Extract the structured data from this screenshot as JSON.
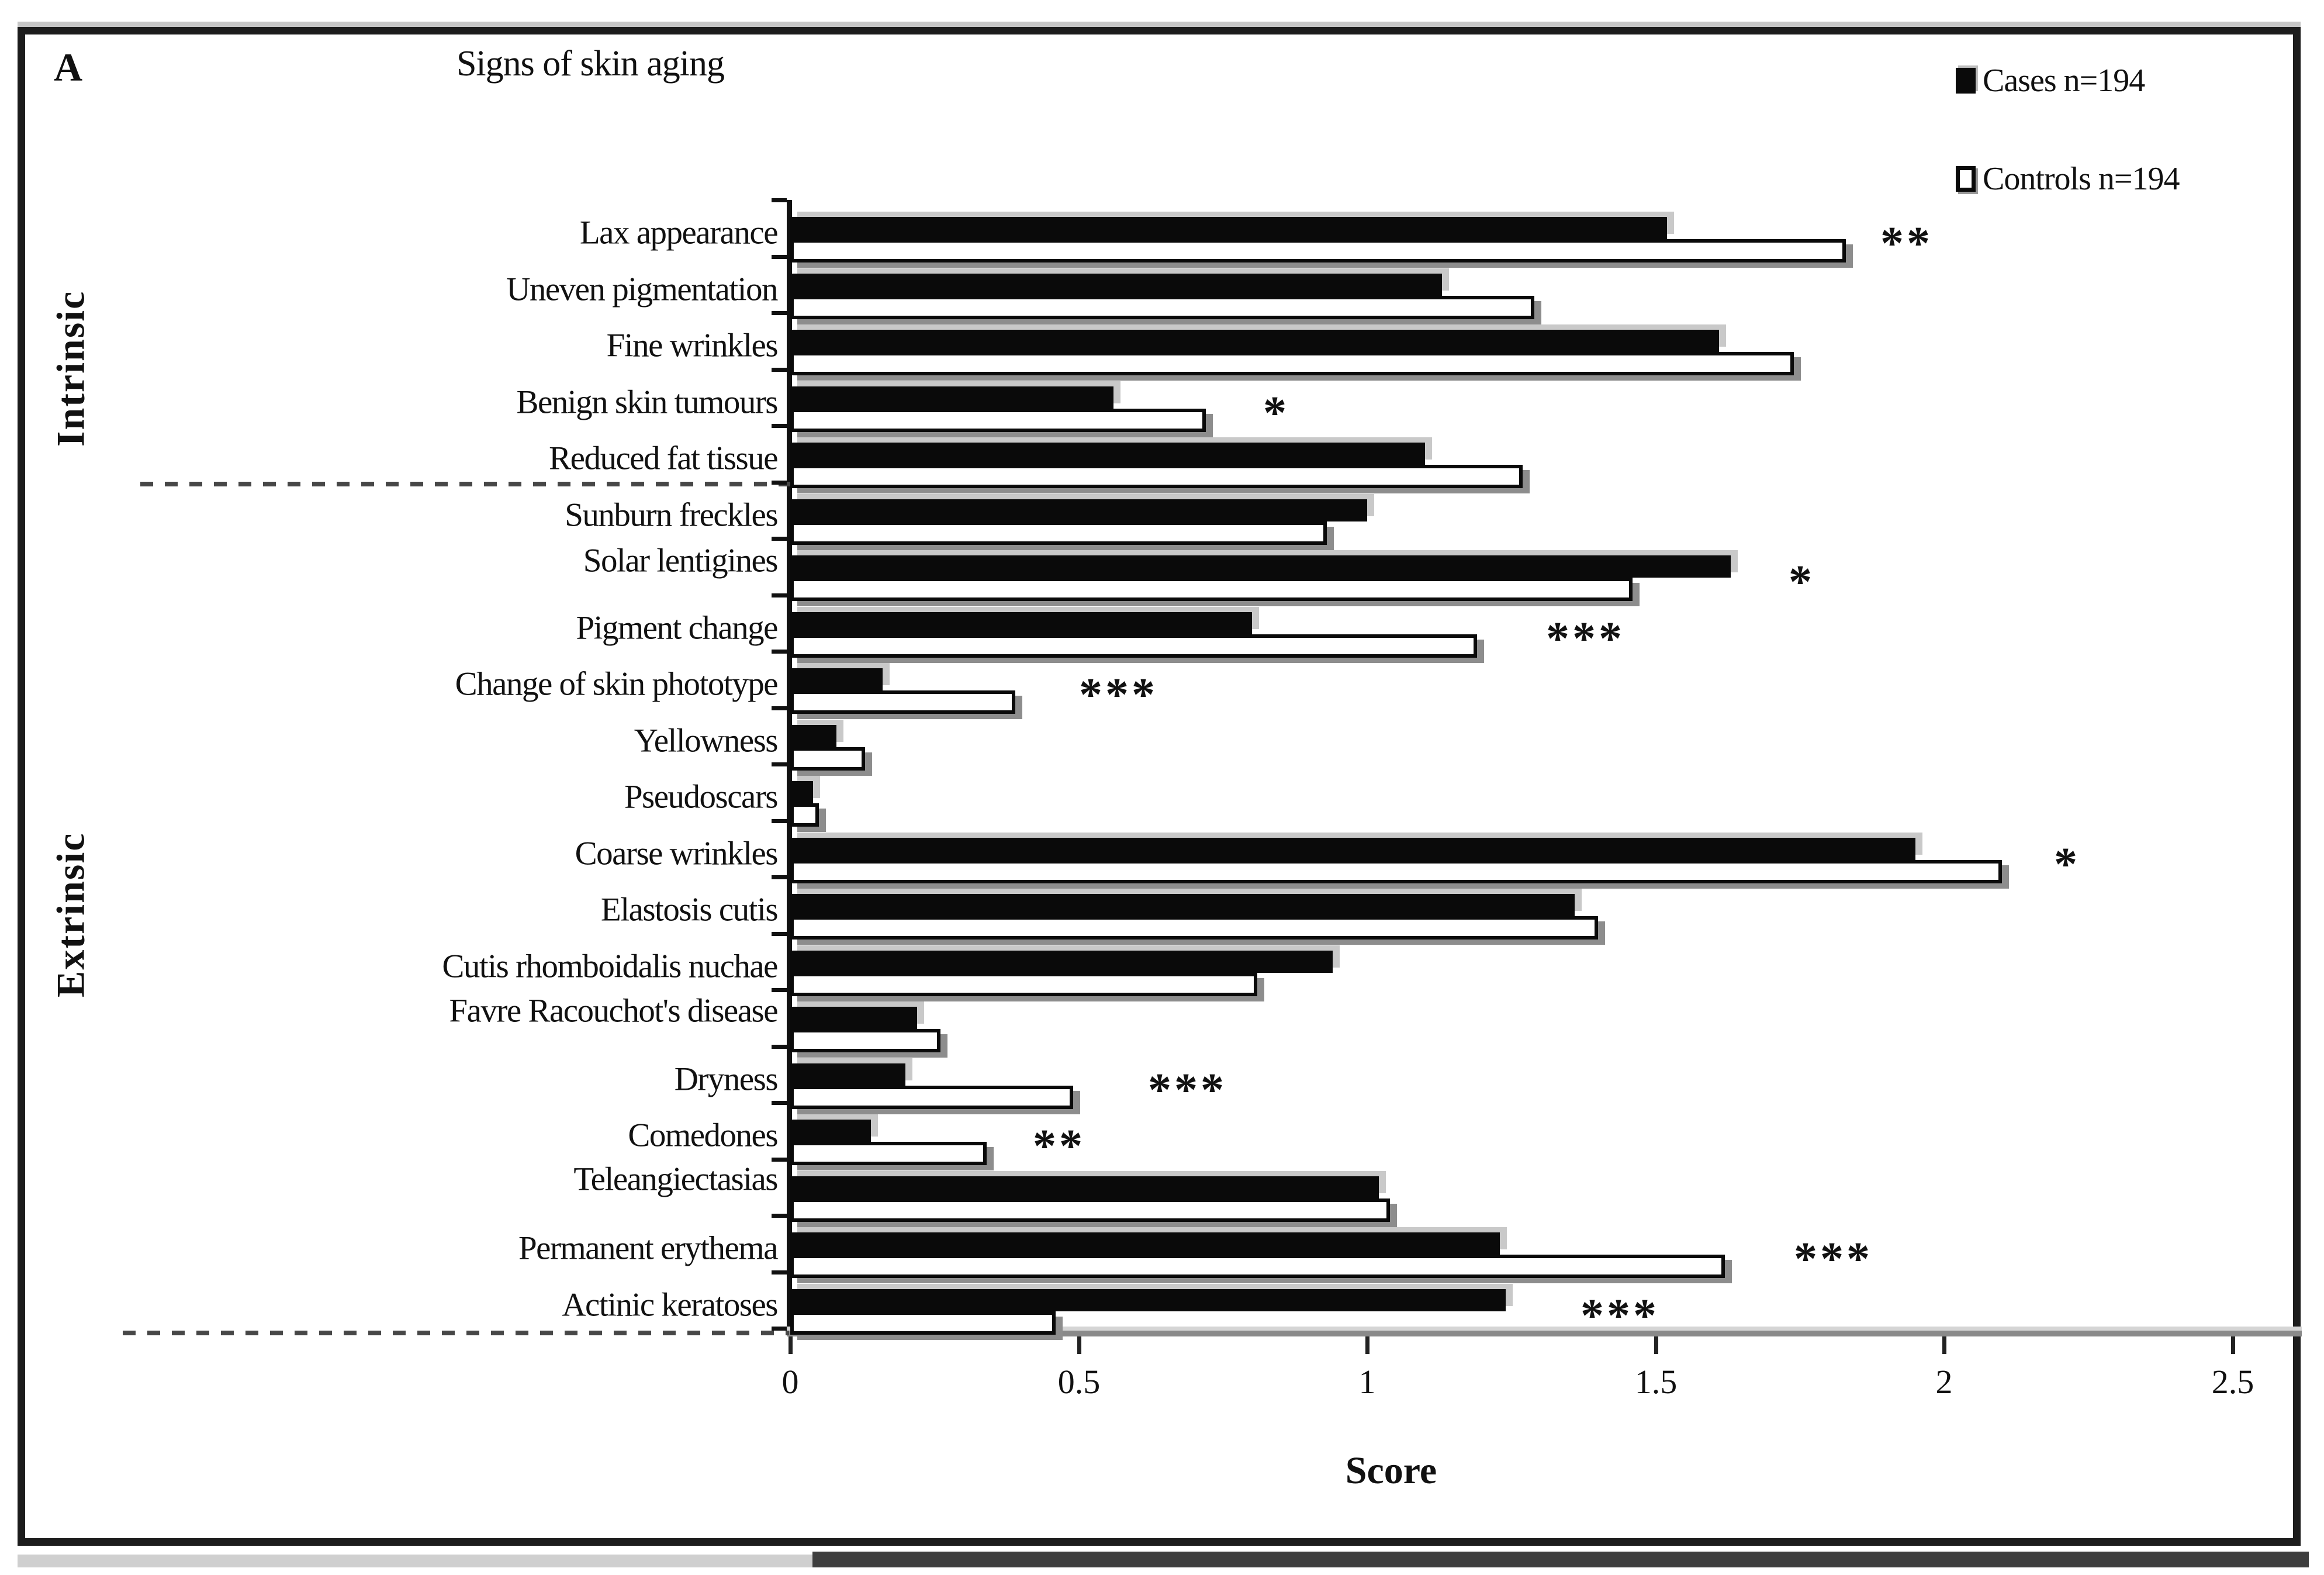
{
  "panel_label": "A",
  "title": "Signs of skin aging",
  "legend": {
    "cases_label": "Cases n=194",
    "controls_label": "Controls n=194"
  },
  "x_axis_title": "Score",
  "group_labels": {
    "intrinsic": "Intrinsic",
    "extrinsic": "Extrinsic"
  },
  "colors": {
    "cases_bar": "#0a0a0a",
    "controls_bar": "#ffffff",
    "bar_outline": "#0a0a0a",
    "axis_gray": "#8a8a8a",
    "shadow_light": "#c9c9c9",
    "shadow_dark": "#8d8d8d",
    "frame": "#1c1c1c"
  },
  "chart_data": {
    "type": "bar",
    "orientation": "horizontal",
    "title": "Signs of skin aging",
    "xlabel": "Score",
    "xlim": [
      0,
      2.5
    ],
    "x_tick_labels": [
      "0",
      "0.5",
      "1",
      "1.5",
      "2",
      "2.5"
    ],
    "x_tick_values": [
      0,
      0.5,
      1,
      1.5,
      2,
      2.5
    ],
    "grid": false,
    "legend_position": "top-right",
    "categories": [
      "Lax appearance",
      "Uneven pigmentation",
      "Fine wrinkles",
      "Benign skin tumours",
      "Reduced fat tissue",
      "Sunburn freckles",
      "Solar lentigines",
      "Pigment change",
      "Change of skin phototype",
      "Yellowness",
      "Pseudoscars",
      "Coarse wrinkles",
      "Elastosis cutis",
      "Cutis rhomboidalis nuchae",
      "Favre Racouchot's disease",
      "Dryness",
      "Comedones",
      "Teleangiectasias",
      "Permanent erythema",
      "Actinic keratoses"
    ],
    "category_groups": [
      "Intrinsic",
      "Intrinsic",
      "Intrinsic",
      "Intrinsic",
      "Intrinsic",
      "Extrinsic",
      "Extrinsic",
      "Extrinsic",
      "Extrinsic",
      "Extrinsic",
      "Extrinsic",
      "Extrinsic",
      "Extrinsic",
      "Extrinsic",
      "Extrinsic",
      "Extrinsic",
      "Extrinsic",
      "Extrinsic",
      "Extrinsic",
      "Extrinsic"
    ],
    "series": [
      {
        "name": "Cases n=194",
        "values": [
          1.52,
          1.13,
          1.61,
          0.56,
          1.1,
          1.0,
          1.63,
          0.8,
          0.16,
          0.08,
          0.04,
          1.95,
          1.36,
          0.94,
          0.22,
          0.2,
          0.14,
          1.02,
          1.23,
          1.24
        ]
      },
      {
        "name": "Controls n=194",
        "values": [
          1.83,
          1.29,
          1.74,
          0.72,
          1.27,
          0.93,
          1.46,
          1.19,
          0.39,
          0.13,
          0.05,
          2.1,
          1.4,
          0.81,
          0.26,
          0.49,
          0.34,
          1.04,
          1.62,
          0.46
        ]
      }
    ],
    "significance": [
      {
        "label": "**",
        "x": 1.89
      },
      null,
      null,
      {
        "label": "*",
        "x": 0.82
      },
      null,
      null,
      {
        "label": "*",
        "x": 1.73
      },
      {
        "label": "***",
        "x": 1.31
      },
      {
        "label": "***",
        "x": 0.5
      },
      null,
      null,
      {
        "label": "*",
        "x": 2.19
      },
      null,
      null,
      null,
      {
        "label": "***",
        "x": 0.62
      },
      {
        "label": "**",
        "x": 0.42
      },
      null,
      {
        "label": "***",
        "x": 1.74
      },
      {
        "label": "***",
        "x": 1.37
      }
    ]
  }
}
